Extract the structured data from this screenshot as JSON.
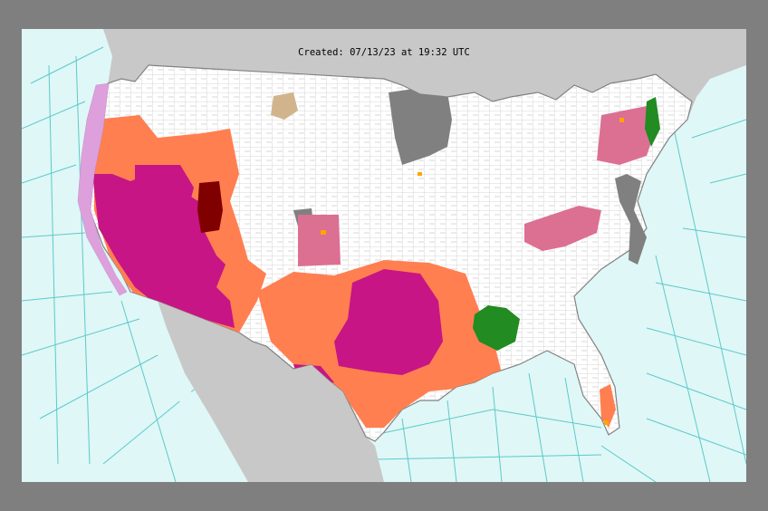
{
  "map": {
    "created_text": "Created: 07/13/23 at 19:32 UTC"
  },
  "colors": {
    "ocean": "#dff7f7",
    "marine_lines": "#5ec9c9",
    "land_outside": "#c8c8c8",
    "land_conus": "#ffffff",
    "county_lines": "#b0b0b0",
    "extreme_heat": "#c71585",
    "heat_advisory": "#ff7f50",
    "excessive_heat_watch": "#800000",
    "air_quality": "#808080",
    "air_quality_light": "#d2b48c",
    "flood_watch": "#db7093",
    "flood_warning": "#228b22",
    "special_marine": "#ffa500",
    "frost": "#dda0dd"
  }
}
